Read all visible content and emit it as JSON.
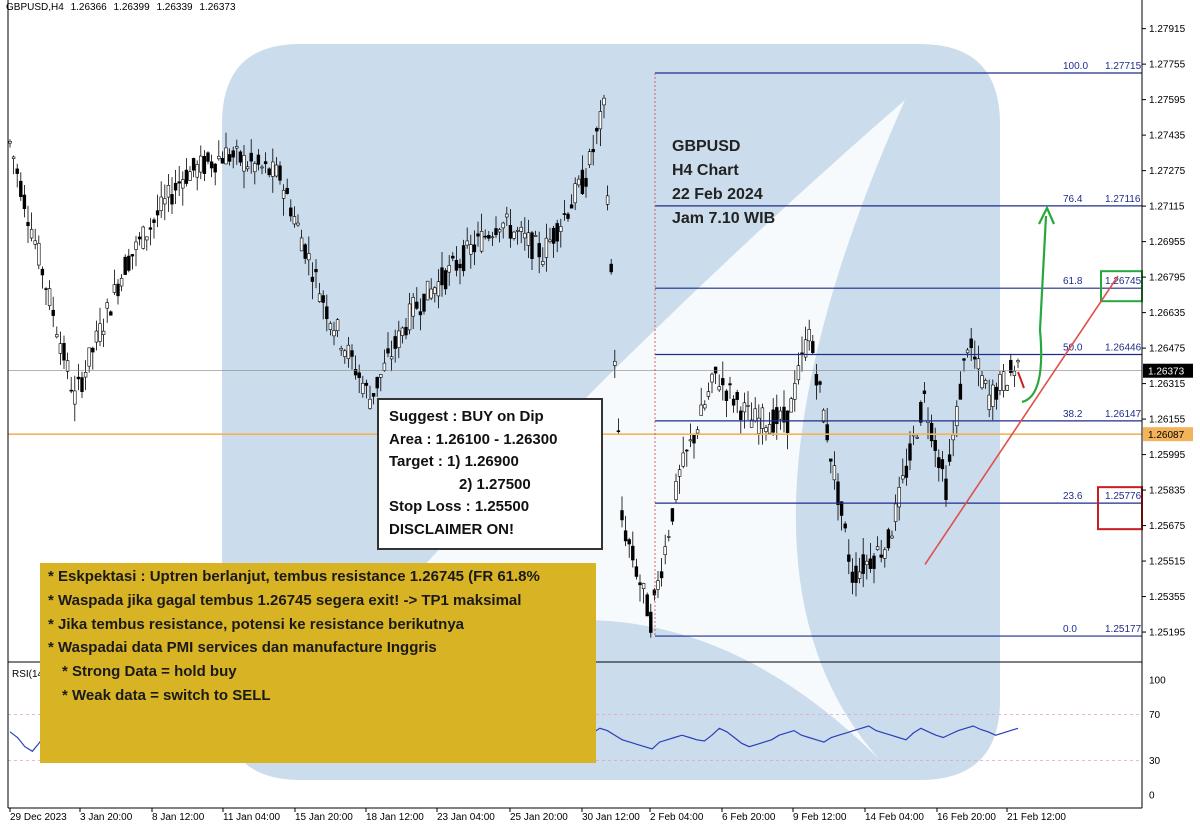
{
  "header": {
    "symbol": "GBPUSD,H4",
    "open": "1.26366",
    "high": "1.26399",
    "low": "1.26339",
    "close": "1.26373"
  },
  "annotation": {
    "lines": [
      "GBPUSD",
      "H4 Chart",
      "22 Feb 2024",
      "Jam 7.10 WIB"
    ]
  },
  "suggest_box": {
    "line1": "Suggest : BUY on Dip",
    "line2": "Area : 1.26100 - 1.26300",
    "line3": "Target : 1) 1.26900",
    "line4": "2) 1.27500",
    "line5": "Stop Loss : 1.25500",
    "line6": "DISCLAIMER ON!"
  },
  "notes_box": {
    "lines": [
      "* Eskpektasi : Uptren berlanjut, tembus resistance 1.26745 (FR 61.8%",
      "* Waspada jika gagal tembus 1.26745  segera exit! -> TP1 maksimal",
      "* Jika tembus resistance, potensi ke resistance berikutnya",
      "* Waspadai data PMI services dan manufacture Inggris"
    ],
    "sub_lines": [
      "* Strong Data = hold buy",
      "* Weak data = switch to SELL"
    ]
  },
  "colors": {
    "bull": "#ffffff",
    "bear": "#000000",
    "fib_line": "#1f2d8a",
    "orange_line": "#f2b35a",
    "trendline": "#e0504a",
    "green_arrow": "#27a83c",
    "rsi_line": "#2b3fb8",
    "watermark": "#a9c4e0"
  },
  "chart_data": {
    "type": "candlestick",
    "symbol": "GBPUSD",
    "timeframe": "H4",
    "ylim": [
      1.2506,
      1.2799
    ],
    "y_ticks": [
      "1.27915",
      "1.27755",
      "1.27595",
      "1.27435",
      "1.27275",
      "1.27115",
      "1.26955",
      "1.26795",
      "1.26635",
      "1.26475",
      "1.26315",
      "1.26155",
      "1.25995",
      "1.25835",
      "1.25675",
      "1.25515",
      "1.25355",
      "1.25195"
    ],
    "x_ticks": [
      "29 Dec 2023",
      "3 Jan 20:00",
      "8 Jan 12:00",
      "11 Jan 04:00",
      "15 Jan 20:00",
      "18 Jan 12:00",
      "23 Jan 04:00",
      "25 Jan 20:00",
      "30 Jan 12:00",
      "2 Feb 04:00",
      "6 Feb 20:00",
      "9 Feb 12:00",
      "14 Feb 04:00",
      "16 Feb 20:00",
      "21 Feb 12:00"
    ],
    "current_price": "1.26373",
    "support_price": "1.26087",
    "fibonacci": [
      {
        "level": "100.0",
        "price": "1.27715"
      },
      {
        "level": "76.4",
        "price": "1.27116"
      },
      {
        "level": "61.8",
        "price": "1.26745"
      },
      {
        "level": "50.0",
        "price": "1.26446"
      },
      {
        "level": "38.2",
        "price": "1.26147"
      },
      {
        "level": "23.6",
        "price": "1.25776"
      },
      {
        "level": "0.0",
        "price": "1.25177"
      }
    ],
    "highlighted_levels": {
      "resistance": "1.26745",
      "stop": "1.25776"
    },
    "trendline": {
      "from": {
        "x": "13 Feb",
        "y": 1.255
      },
      "to": {
        "x": "22 Feb",
        "y": 1.268
      }
    },
    "rsi": {
      "label": "RSI(14)",
      "ylim": [
        0,
        100
      ],
      "ticks": [
        "100",
        "70",
        "30",
        "0"
      ],
      "values": [
        55,
        50,
        42,
        38,
        46,
        58,
        64,
        60,
        52,
        47,
        43,
        40,
        45,
        52,
        60,
        66,
        63,
        58,
        54,
        48,
        44,
        40,
        46,
        52,
        58,
        62,
        66,
        70,
        64,
        58,
        54,
        50,
        46,
        42,
        48,
        54,
        60,
        64,
        62,
        58,
        54,
        50,
        46,
        44,
        48,
        52,
        56,
        60,
        58,
        54,
        50,
        56,
        58,
        60,
        56,
        52,
        48,
        46,
        50,
        54,
        58,
        62,
        55,
        48,
        40,
        36,
        30,
        34,
        40,
        44,
        48,
        52,
        50,
        46,
        42,
        38,
        44,
        50,
        54,
        58,
        56,
        52,
        48,
        46,
        44,
        42,
        40,
        46,
        48,
        50,
        52,
        50,
        48,
        47,
        52,
        58,
        55,
        50,
        45,
        42,
        44,
        46,
        48,
        52,
        54,
        56,
        52,
        50,
        48,
        46,
        50,
        52,
        54,
        56,
        58,
        60,
        56,
        54,
        52,
        50,
        48,
        54,
        58,
        55,
        52,
        50,
        53,
        56,
        58,
        60,
        57,
        55,
        52,
        54,
        56,
        58
      ]
    }
  }
}
